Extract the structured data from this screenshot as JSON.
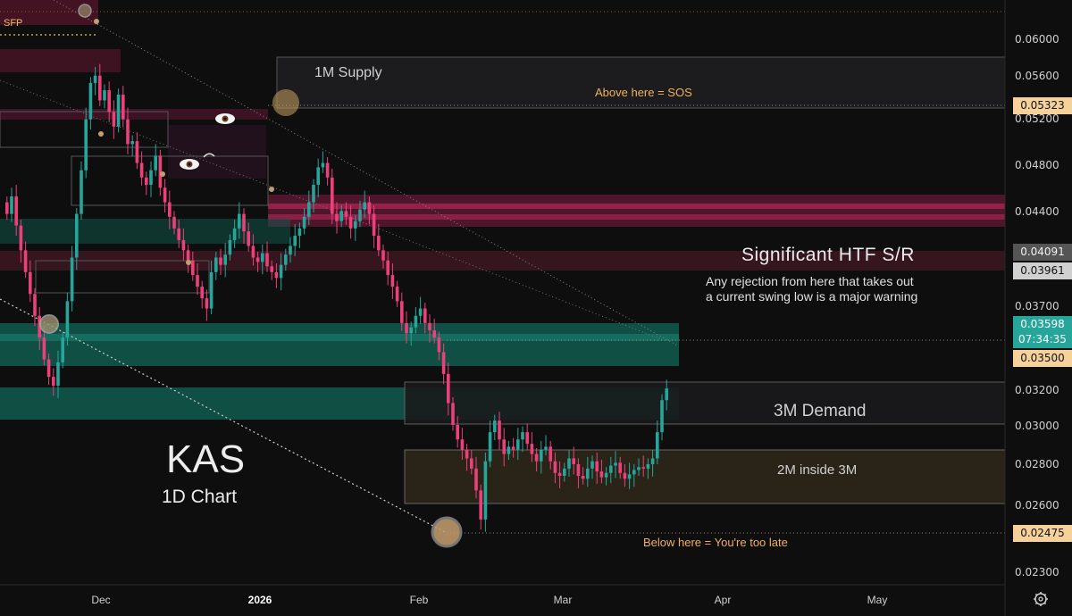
{
  "chart_data": {
    "type": "candlestick",
    "symbol": "KAS",
    "timeframe": "1D Chart",
    "y_axis_ticks": [
      "0.06000",
      "0.05600",
      "0.05200",
      "0.04800",
      "0.04400",
      "0.03700",
      "0.03200",
      "0.03000",
      "0.02800",
      "0.02600",
      "0.02300"
    ],
    "x_axis_ticks": [
      "Dec",
      "2026",
      "Feb",
      "Mar",
      "Apr",
      "May"
    ],
    "price_labels": {
      "supply_level": "0.05323",
      "htf_upper": "0.04091",
      "htf_lower": "0.03961",
      "current": "0.03598",
      "countdown": "07:34:35",
      "level_035": "0.03500",
      "invalidation": "0.02475"
    },
    "zones": [
      {
        "name": "1M Supply",
        "low": 0.0532,
        "high": 0.0578
      },
      {
        "name": "Significant HTF S/R",
        "low": 0.0396,
        "high": 0.0409
      },
      {
        "name": "3M Demand",
        "low": 0.0301,
        "high": 0.0322
      },
      {
        "name": "2M inside 3M",
        "low": 0.0262,
        "high": 0.0287
      }
    ],
    "annotations": {
      "sfp": "SFP",
      "above_sos": "Above here = SOS",
      "htf_title": "Significant HTF S/R",
      "htf_note_1": "Any rejection from here that takes out",
      "htf_note_2": "a current swing low is a major warning",
      "below_late": "Below here = You're too late"
    },
    "colors": {
      "up": "#26a69a",
      "down": "#ec407a",
      "supply": "#e0407a",
      "demand": "#1a7a6a",
      "orange": "#f0b060"
    },
    "closes": [
      0.048,
      0.0492,
      0.0472,
      0.0455,
      0.044,
      0.0425,
      0.041,
      0.0395,
      0.038,
      0.0368,
      0.0362,
      0.0378,
      0.0395,
      0.042,
      0.045,
      0.048,
      0.051,
      0.0545,
      0.057,
      0.0575,
      0.0558,
      0.0565,
      0.055,
      0.054,
      0.0562,
      0.0545,
      0.0528,
      0.053,
      0.0515,
      0.0505,
      0.05,
      0.051,
      0.052,
      0.0498,
      0.0488,
      0.0478,
      0.047,
      0.0462,
      0.0455,
      0.0448,
      0.0438,
      0.043,
      0.0422,
      0.0415,
      0.044,
      0.045,
      0.0445,
      0.0452,
      0.0462,
      0.047,
      0.048,
      0.0468,
      0.0458,
      0.045,
      0.0447,
      0.0453,
      0.0444,
      0.044,
      0.0436,
      0.0445,
      0.0452,
      0.0458,
      0.0465,
      0.047,
      0.0478,
      0.0488,
      0.05,
      0.0512,
      0.0515,
      0.0505,
      0.048,
      0.0475,
      0.0482,
      0.0478,
      0.047,
      0.0475,
      0.0483,
      0.0488,
      0.048,
      0.0465,
      0.0455,
      0.0448,
      0.0438,
      0.043,
      0.042,
      0.0405,
      0.0398,
      0.0402,
      0.041,
      0.0415,
      0.0405,
      0.04,
      0.0395,
      0.0385,
      0.037,
      0.035,
      0.0335,
      0.0325,
      0.0318,
      0.0312,
      0.0305,
      0.029,
      0.027,
      0.031,
      0.033,
      0.0338,
      0.0325,
      0.0315,
      0.032,
      0.0318,
      0.0325,
      0.033,
      0.0322,
      0.0315,
      0.031,
      0.0318,
      0.032,
      0.031,
      0.0302,
      0.03,
      0.0305,
      0.0312,
      0.0308,
      0.03,
      0.0298,
      0.0305,
      0.031,
      0.0303,
      0.0299,
      0.0302,
      0.0307,
      0.0309,
      0.0302,
      0.0298,
      0.0301,
      0.0304,
      0.0306,
      0.0305,
      0.0308,
      0.0312,
      0.033,
      0.0352,
      0.036
    ]
  }
}
